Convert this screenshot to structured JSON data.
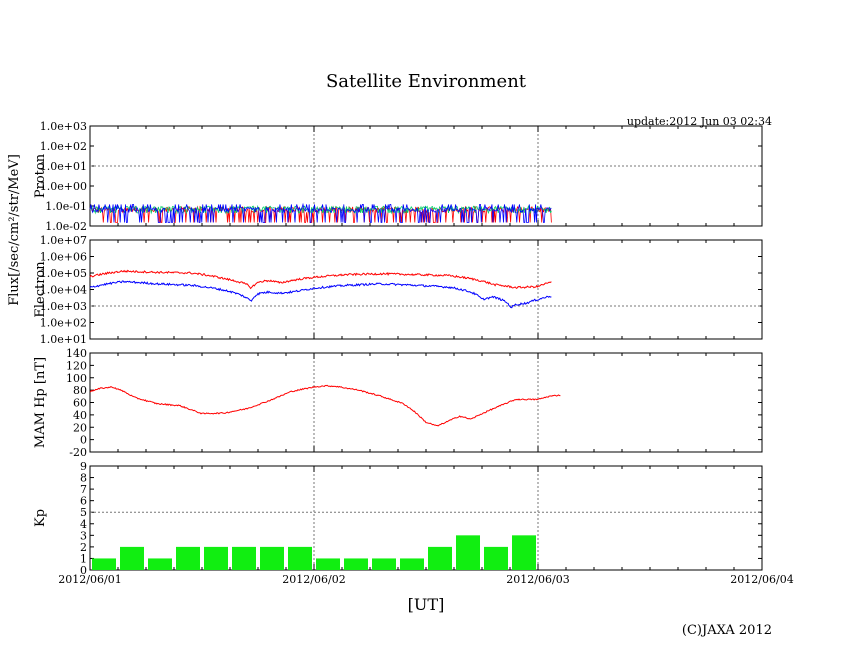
{
  "header": {
    "title": "Satellite Environment",
    "update": "update:2012 Jun 03 02:34",
    "copyright": "(C)JAXA 2012"
  },
  "x_axis": {
    "label": "[UT]",
    "ticks": [
      "2012/06/01",
      "2012/06/02",
      "2012/06/03",
      "2012/06/04"
    ],
    "range_days": [
      0,
      3
    ]
  },
  "shared_ylabel": "Flux[/sec/cm²/str/MeV]",
  "chart_data": [
    {
      "type": "line",
      "name": "proton",
      "ylabel": "Proton",
      "yscale": "log",
      "ylim": [
        0.01,
        1000
      ],
      "ticks": [
        "1.0e-02",
        "1.0e-01",
        "1.0e+00",
        "1.0e+01",
        "1.0e+02",
        "1.0e+03"
      ],
      "data_end_day": 2.06,
      "series": [
        {
          "color": "#ff0000",
          "base": 0.06,
          "noise_low": 0.015,
          "noise_high": 0.09
        },
        {
          "color": "#00cc66",
          "base": 0.07,
          "noise_low": 0.045,
          "noise_high": 0.09
        },
        {
          "color": "#0000ff",
          "base": 0.06,
          "noise_low": 0.015,
          "noise_high": 0.12
        }
      ],
      "color_series": [
        "#ff0000",
        "#00cc66",
        "#0000ff"
      ]
    },
    {
      "type": "line",
      "name": "electron",
      "ylabel": "Electron",
      "yscale": "log",
      "ylim": [
        10,
        10000000
      ],
      "ticks": [
        "1.0e+01",
        "1.0e+02",
        "1.0e+03",
        "1.0e+04",
        "1.0e+05",
        "1.0e+06",
        "1.0e+07"
      ],
      "series": [
        {
          "color": "#ff0000",
          "x": [
            0,
            0.15,
            0.3,
            0.45,
            0.6,
            0.7,
            0.72,
            0.74,
            0.76,
            0.8,
            0.85,
            0.9,
            0.95,
            1.0,
            1.15,
            1.3,
            1.45,
            1.6,
            1.7,
            1.8,
            1.9,
            2.0,
            2.06
          ],
          "y": [
            60000,
            130000,
            110000,
            100000,
            45000,
            20000,
            12000,
            22000,
            30000,
            35000,
            25000,
            35000,
            45000,
            55000,
            80000,
            90000,
            80000,
            70000,
            45000,
            20000,
            13000,
            15000,
            28000
          ]
        },
        {
          "color": "#0000ff",
          "x": [
            0,
            0.15,
            0.3,
            0.45,
            0.6,
            0.7,
            0.72,
            0.74,
            0.76,
            0.8,
            0.85,
            0.9,
            0.95,
            1.0,
            1.15,
            1.3,
            1.45,
            1.6,
            1.7,
            1.75,
            1.8,
            1.85,
            1.88,
            1.9,
            1.95,
            2.0,
            2.06
          ],
          "y": [
            13000,
            30000,
            22000,
            18000,
            9000,
            3000,
            2000,
            4500,
            6000,
            7000,
            6000,
            7000,
            9000,
            12000,
            18000,
            22000,
            18000,
            14000,
            7000,
            2500,
            3500,
            2000,
            800,
            1200,
            1500,
            2500,
            4000
          ]
        }
      ],
      "color_series": [
        "#ff0000",
        "#0000ff"
      ]
    },
    {
      "type": "line",
      "name": "mam-hp",
      "ylabel": "MAM Hp [nT]",
      "yscale": "linear",
      "ylim": [
        -20,
        140
      ],
      "ticks": [
        "-20",
        "0",
        "20",
        "40",
        "60",
        "80",
        "100",
        "120",
        "140"
      ],
      "series": [
        {
          "color": "#ff0000",
          "x": [
            0,
            0.05,
            0.1,
            0.15,
            0.2,
            0.3,
            0.4,
            0.5,
            0.6,
            0.7,
            0.8,
            0.9,
            1.0,
            1.05,
            1.1,
            1.2,
            1.3,
            1.4,
            1.45,
            1.5,
            1.55,
            1.6,
            1.65,
            1.7,
            1.75,
            1.8,
            1.9,
            2.0,
            2.05,
            2.1
          ],
          "y": [
            78,
            83,
            85,
            78,
            68,
            58,
            55,
            42,
            43,
            50,
            63,
            78,
            85,
            87,
            86,
            80,
            70,
            58,
            45,
            28,
            22,
            30,
            38,
            33,
            42,
            50,
            65,
            65,
            70,
            72
          ]
        }
      ],
      "color_series": [
        "#ff0000"
      ]
    },
    {
      "type": "bar",
      "name": "kp",
      "ylabel": "Kp",
      "ylim": [
        0,
        9
      ],
      "ticks": [
        "0",
        "1",
        "2",
        "3",
        "4",
        "5",
        "6",
        "7",
        "8",
        "9"
      ],
      "bar_color": "#11ee11",
      "bin_days": 0.125,
      "values": [
        1,
        2,
        1,
        2,
        2,
        2,
        2,
        2,
        1,
        1,
        1,
        1,
        2,
        3,
        2,
        3
      ]
    }
  ]
}
